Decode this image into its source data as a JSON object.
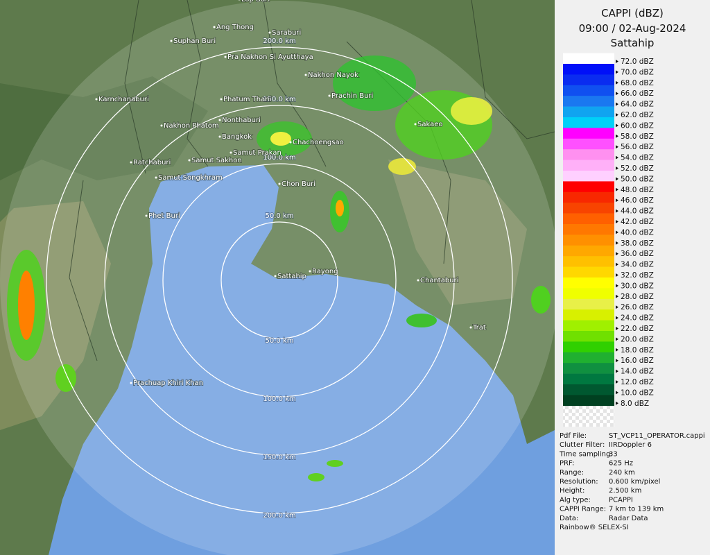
{
  "header": {
    "product": "CAPPI (dBZ)",
    "datetime": "09:00 / 02-Aug-2024",
    "site": "Sattahip"
  },
  "legend": {
    "levels": [
      {
        "label": "72.0 dBZ",
        "color": "#ffffff"
      },
      {
        "label": "70.0 dBZ",
        "color": "#0010f8"
      },
      {
        "label": "68.0 dBZ",
        "color": "#0a2cf0"
      },
      {
        "label": "66.0 dBZ",
        "color": "#1050f0"
      },
      {
        "label": "64.0 dBZ",
        "color": "#1a78f0"
      },
      {
        "label": "62.0 dBZ",
        "color": "#10a4f0"
      },
      {
        "label": "60.0 dBZ",
        "color": "#00d0f8"
      },
      {
        "label": "58.0 dBZ",
        "color": "#ff00ff"
      },
      {
        "label": "56.0 dBZ",
        "color": "#ff50ff"
      },
      {
        "label": "54.0 dBZ",
        "color": "#ff90f0"
      },
      {
        "label": "52.0 dBZ",
        "color": "#ffb0f8"
      },
      {
        "label": "50.0 dBZ",
        "color": "#ffd0ff"
      },
      {
        "label": "48.0 dBZ",
        "color": "#ff0000"
      },
      {
        "label": "46.0 dBZ",
        "color": "#f82800"
      },
      {
        "label": "44.0 dBZ",
        "color": "#f84400"
      },
      {
        "label": "42.0 dBZ",
        "color": "#ff6000"
      },
      {
        "label": "40.0 dBZ",
        "color": "#ff7800"
      },
      {
        "label": "38.0 dBZ",
        "color": "#ff9000"
      },
      {
        "label": "36.0 dBZ",
        "color": "#ffa800"
      },
      {
        "label": "34.0 dBZ",
        "color": "#ffc000"
      },
      {
        "label": "32.0 dBZ",
        "color": "#ffd800"
      },
      {
        "label": "30.0 dBZ",
        "color": "#ffff00"
      },
      {
        "label": "28.0 dBZ",
        "color": "#f0ff00"
      },
      {
        "label": "26.0 dBZ",
        "color": "#e8f048"
      },
      {
        "label": "24.0 dBZ",
        "color": "#d8f000"
      },
      {
        "label": "22.0 dBZ",
        "color": "#a0f000"
      },
      {
        "label": "20.0 dBZ",
        "color": "#70e000"
      },
      {
        "label": "18.0 dBZ",
        "color": "#30d000"
      },
      {
        "label": "16.0 dBZ",
        "color": "#20b030"
      },
      {
        "label": "14.0 dBZ",
        "color": "#109040"
      },
      {
        "label": "12.0 dBZ",
        "color": "#007840"
      },
      {
        "label": "10.0 dBZ",
        "color": "#005830"
      },
      {
        "label": "8.0 dBZ",
        "color": "#004020"
      }
    ]
  },
  "range_rings": [
    "50.0 km",
    "100.0 km",
    "150.0 km",
    "200.0 km"
  ],
  "places": [
    "Lop Buri",
    "Ang Thong",
    "Saraburi",
    "Suphan Buri",
    "Pra Nakhon Si Ayutthaya",
    "Nakhon Nayok",
    "Prachin Buri",
    "Karnchanaburi",
    "Phatum Thani",
    "Nonthaburi",
    "Nakhon Phatom",
    "Sakaeo",
    "Bangkok",
    "Chachoengsao",
    "Samut Prakan",
    "Ratchaburi",
    "Samut Sakhon",
    "Samut Songkhram",
    "Chon Buri",
    "Phet Buri",
    "Sattahip",
    "Rayong",
    "Chantaburi",
    "Trat",
    "Prachuap Khiri Khan"
  ],
  "info": {
    "rows": [
      [
        "Pdf File:",
        "ST_VCP11_OPERATOR.cappi"
      ],
      [
        "Clutter Filter:",
        "IIRDoppler 6"
      ],
      [
        "Time sampling:",
        "33"
      ],
      [
        "PRF:",
        "625 Hz"
      ],
      [
        "Range:",
        "240 km"
      ],
      [
        "Resolution:",
        "0.600 km/pixel"
      ],
      [
        "Height:",
        "2.500 km"
      ],
      [
        "Alg type:",
        "PCAPPI"
      ],
      [
        "CAPPI Range:",
        "7 km to 139 km"
      ],
      [
        "Data:",
        "Radar Data"
      ]
    ],
    "footer": "Rainbow® SELEX-SI"
  }
}
